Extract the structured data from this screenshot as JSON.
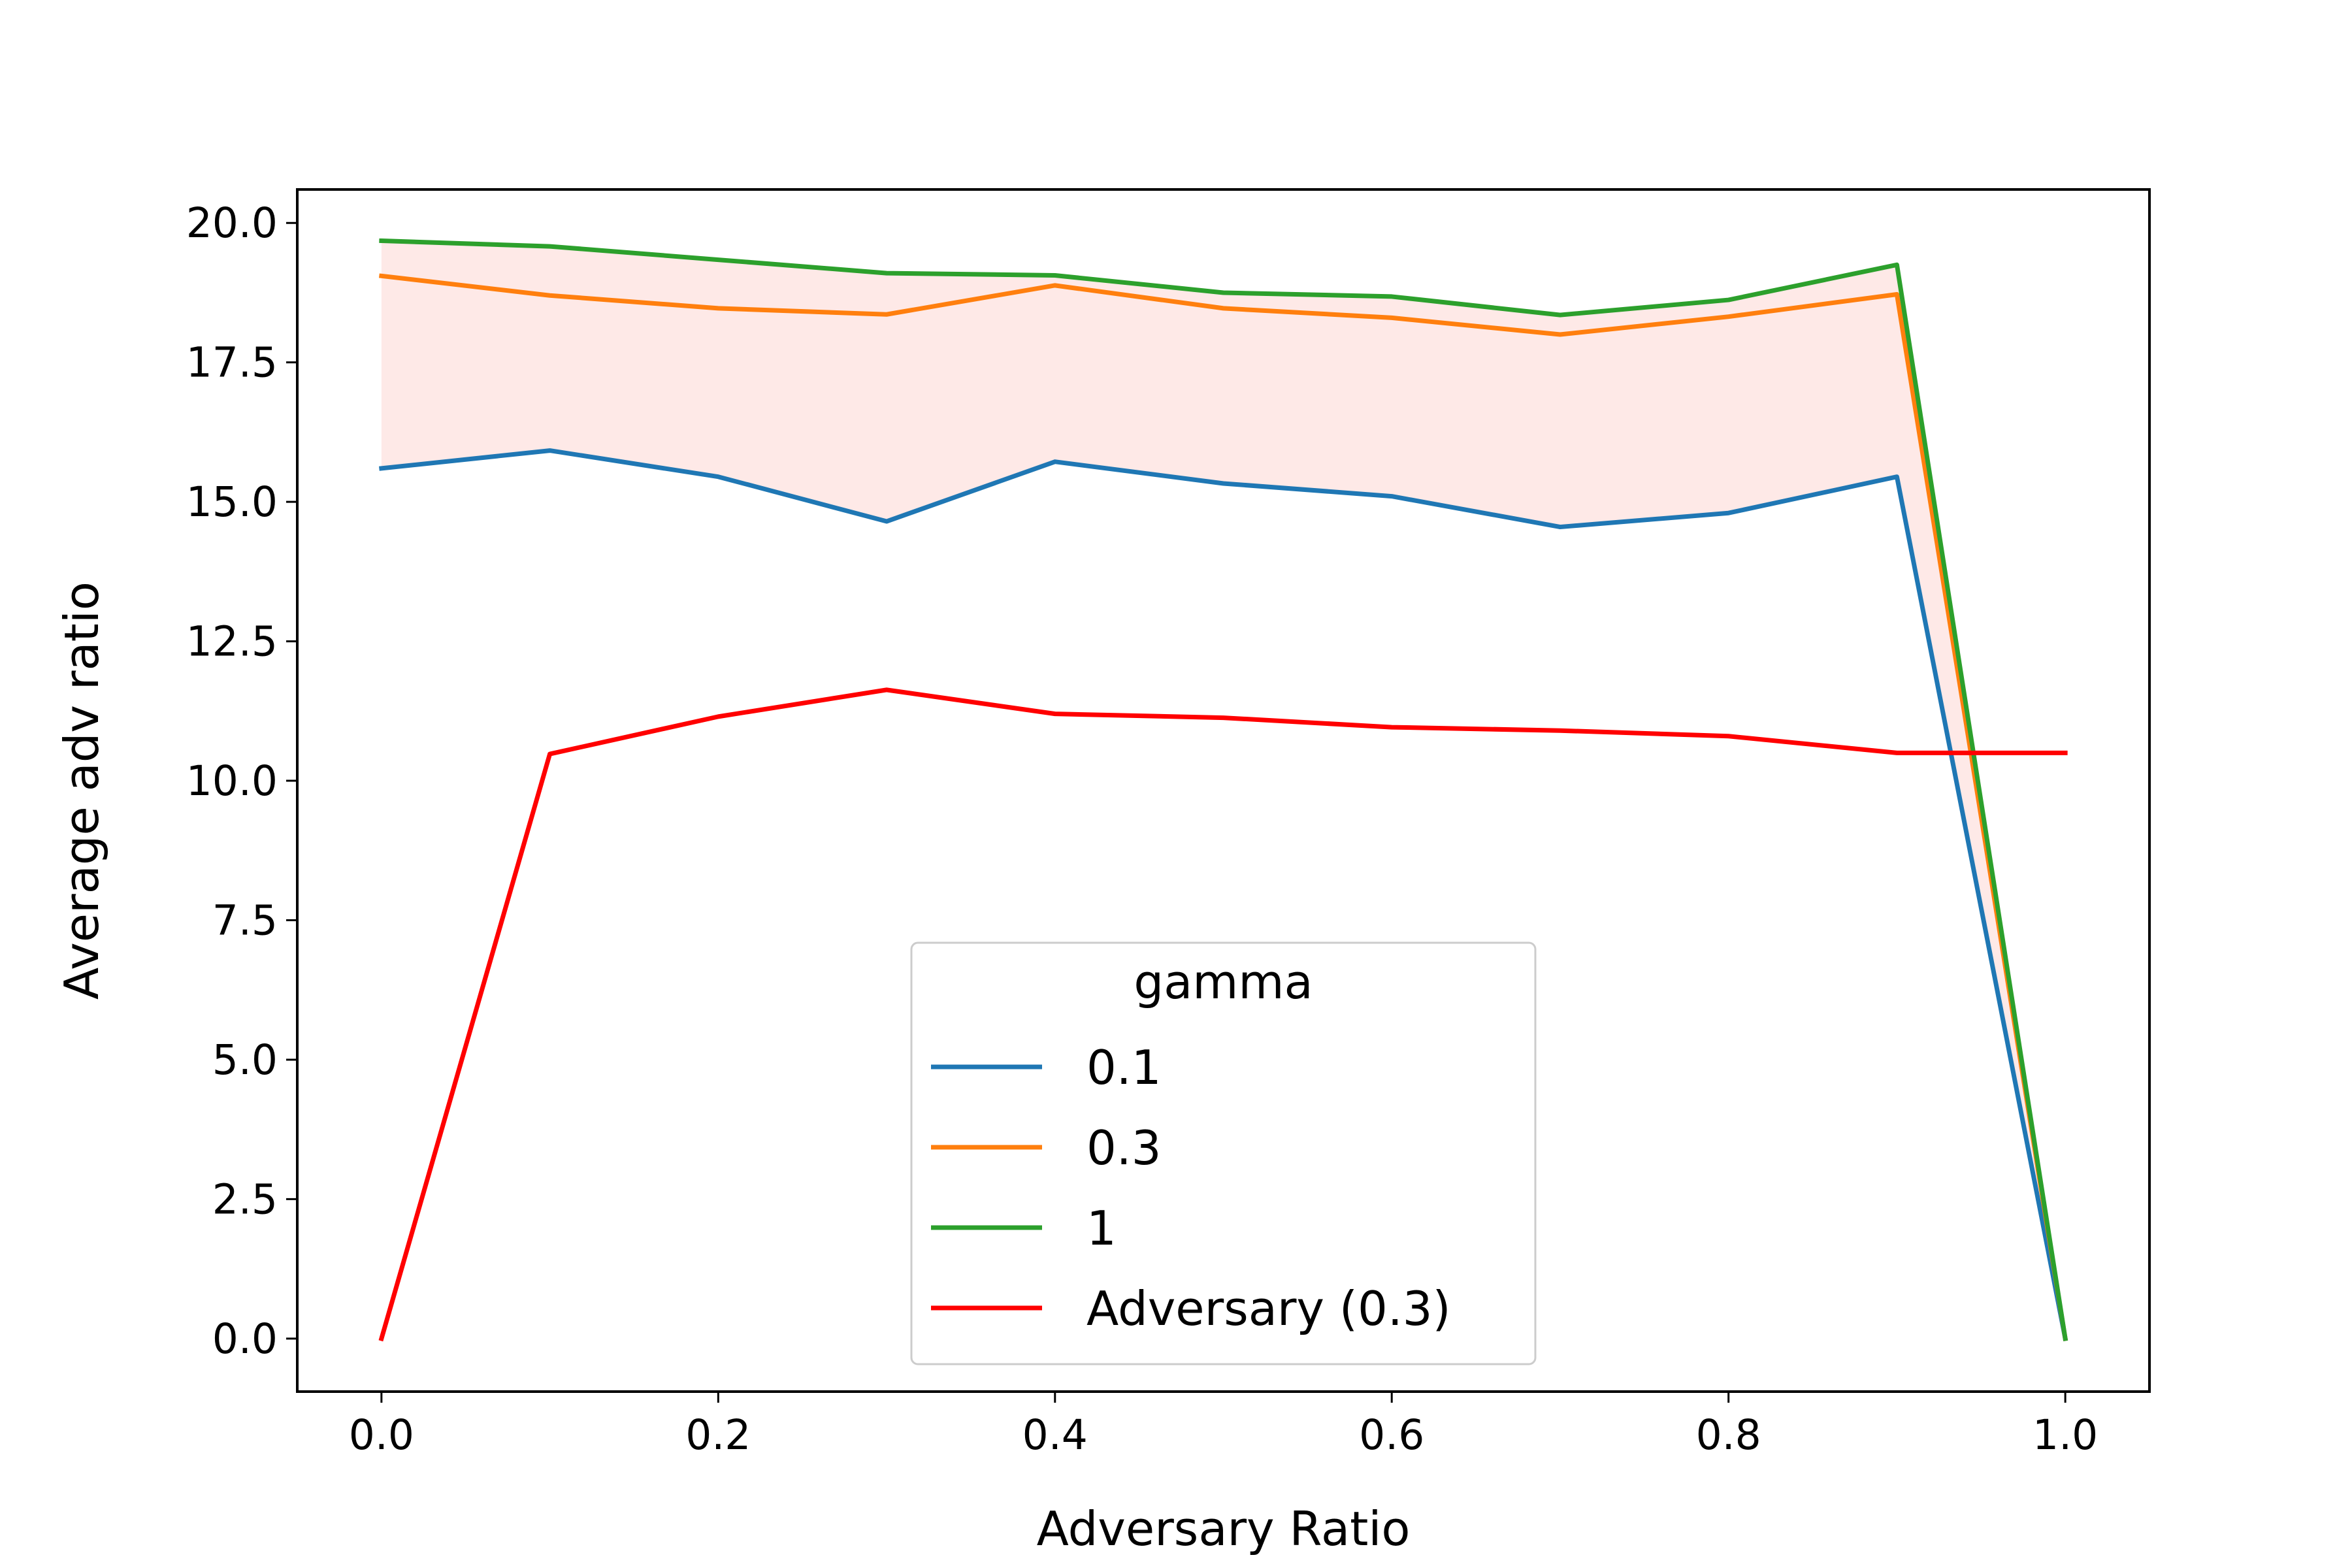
{
  "chart_data": {
    "type": "line",
    "title": "",
    "xlabel": "Adversary Ratio",
    "ylabel": "Average adv ratio",
    "xlim": [
      -0.05,
      1.05
    ],
    "ylim": [
      -0.95,
      20.6
    ],
    "xticks": [
      0.0,
      0.2,
      0.4,
      0.6,
      0.8,
      1.0
    ],
    "xtick_labels": [
      "0.0",
      "0.2",
      "0.4",
      "0.6",
      "0.8",
      "1.0"
    ],
    "yticks": [
      0.0,
      2.5,
      5.0,
      7.5,
      10.0,
      12.5,
      15.0,
      17.5,
      20.0
    ],
    "ytick_labels": [
      "0.0",
      "2.5",
      "5.0",
      "7.5",
      "10.0",
      "12.5",
      "15.0",
      "17.5",
      "20.0"
    ],
    "grid": false,
    "x": [
      0.0,
      0.1,
      0.2,
      0.3,
      0.4,
      0.5,
      0.6,
      0.7,
      0.8,
      0.9,
      1.0
    ],
    "legend": {
      "title": "gamma",
      "placement": "lower-center"
    },
    "series": [
      {
        "name": "0.1",
        "color": "#1f77b4",
        "values": [
          15.6,
          15.92,
          15.45,
          14.65,
          15.72,
          15.33,
          15.1,
          14.55,
          14.8,
          15.45,
          0.0
        ]
      },
      {
        "name": "0.3",
        "color": "#ff7f0e",
        "values": [
          19.05,
          18.7,
          18.47,
          18.36,
          18.88,
          18.47,
          18.3,
          18.0,
          18.32,
          18.72,
          0.0
        ]
      },
      {
        "name": "1",
        "color": "#2ca02c",
        "values": [
          19.68,
          19.58,
          19.34,
          19.1,
          19.06,
          18.75,
          18.68,
          18.35,
          18.62,
          19.25,
          0.0
        ]
      },
      {
        "name": "Adversary (0.3)",
        "color": "#ff0000",
        "values": [
          0.0,
          10.48,
          11.15,
          11.63,
          11.2,
          11.13,
          10.96,
          10.9,
          10.8,
          10.5,
          10.5
        ]
      }
    ],
    "band": {
      "lower_series": "0.1",
      "upper_series": "1",
      "color": "#fdd7d4",
      "opacity": 0.55
    }
  }
}
